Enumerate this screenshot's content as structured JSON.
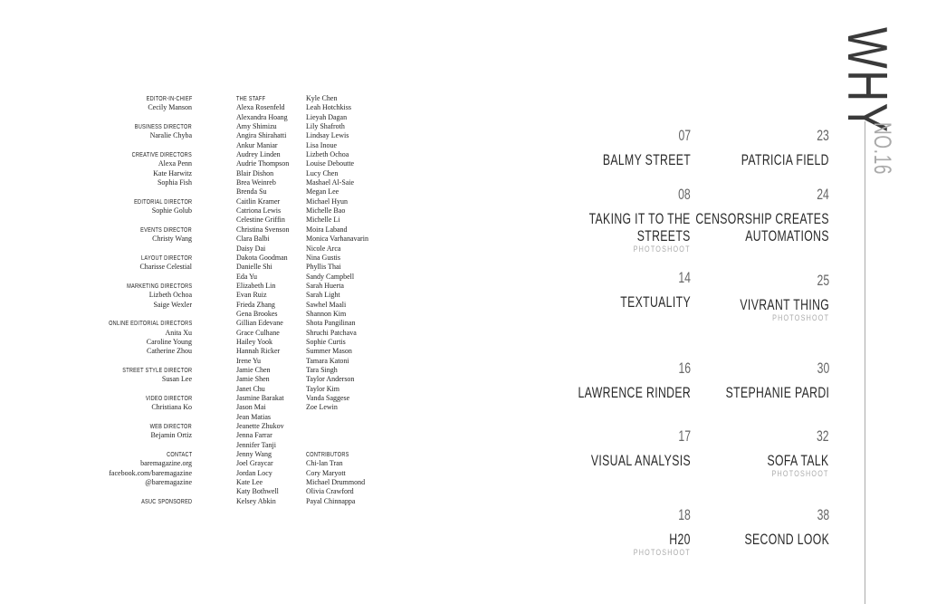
{
  "masthead": [
    {
      "role": "Editor-in-Chief",
      "names": [
        "Cecily Manson"
      ]
    },
    {
      "role": "Business Director",
      "names": [
        "Naralie Chyba"
      ]
    },
    {
      "role": "Creative Directors",
      "names": [
        "Alexa Penn",
        "Kate Harwitz",
        "Sophia Fish"
      ]
    },
    {
      "role": "Editorial Director",
      "names": [
        "Sophie Golub"
      ]
    },
    {
      "role": "Events Director",
      "names": [
        "Christy Wang"
      ]
    },
    {
      "role": "Layout Director",
      "names": [
        "Charisse Celestial"
      ]
    },
    {
      "role": "Marketing Directors",
      "names": [
        "Lizbeth Ochoa",
        "Saige Wexler"
      ]
    },
    {
      "role": "Online Editorial Directors",
      "names": [
        "Anita Xu",
        "Caroline Young",
        "Catherine Zhou"
      ]
    },
    {
      "role": "Street Style Director",
      "names": [
        "Susan Lee"
      ]
    },
    {
      "role": "Video Director",
      "names": [
        "Christiana Ko"
      ]
    },
    {
      "role": "Web Director",
      "names": [
        "Bejamin Ortiz"
      ]
    },
    {
      "role": "Contact",
      "names": [
        "baremagazine.org",
        "facebook.com/baremagazine",
        "@baremagazine"
      ]
    },
    {
      "role": "ASUC Sponsored",
      "names": []
    }
  ],
  "staff": {
    "heading": "The Staff",
    "column1": [
      "Alexa Rosenfeld",
      "Alexandra Hoang",
      "Amy Shimizu",
      "Angira Shirahatti",
      "Ankur Maniar",
      "Audrey Linden",
      "Audrie Thompson",
      "Blair Dishon",
      "Brea Weinreb",
      "Brenda Su",
      "Caitlin Kramer",
      "Catriona Lewis",
      "Celestine Griffin",
      "Christina Svenson",
      "Clara Balbi",
      "Daisy Dai",
      "Dakota Goodman",
      "Danielle Shi",
      "Eda Yu",
      "Elizabeth Lin",
      "Evan Ruiz",
      "Frieda Zhang",
      "Gena Brookes",
      "Gillian Edevane",
      "Grace Culhane",
      "Hailey Yook",
      "Hannah Ricker",
      "Irene Yu",
      "Jamie Chen",
      "Jamie Shen",
      "Janet Chu",
      "Jasmine Barakat",
      "Jason Mai",
      "Jean Matias",
      "Jeanette Zhukov",
      "Jenna Farrar",
      "Jennifer Tanji",
      "Jenny Wang",
      "Joel Graycar",
      "Jordan Locy",
      "Kate Lee",
      "Katy Bothwell",
      "Kelsey Abkin"
    ],
    "column2": [
      "Kyle Chen",
      "Leah Hotchkiss",
      "Lieyah Dagan",
      "Lily Shafroth",
      "Lindsay Lewis",
      "Lisa Inoue",
      "Lizbeth Ochoa",
      "Louise Deboutte",
      "Lucy Chen",
      "Mashael Al-Saie",
      "Megan Lee",
      "Michael Hyun",
      "Michelle Bao",
      "Michelle Li",
      "Moira Laband",
      "Monica Varhanavarin",
      "Nicole Arca",
      "Nina Gustis",
      "Phyllis Thai",
      "Sandy Campbell",
      "Sarah Huerta",
      "Sarah Light",
      "Sawhel Maali",
      "Shannon Kim",
      "Shota Pangilinan",
      "Shruchi Patchava",
      "Sophie Curtis",
      "Summer Mason",
      "Tamara Katoni",
      "Tara Singh",
      "Taylor Anderson",
      "Taylor Kim",
      "Vanda Saggese",
      "Zoe Lewin"
    ]
  },
  "contributors": {
    "heading": "Contributors",
    "names": [
      "Chi-lan Tran",
      "Cory Maryott",
      "Michael Drummond",
      "Olivia Crawford",
      "Payal Chinnappa"
    ]
  },
  "toc": {
    "left": [
      {
        "page": "07",
        "title": [
          "BALMY STREET"
        ],
        "tag": ""
      },
      {
        "page": "08",
        "title": [
          "TAKING IT TO THE",
          "STREETS"
        ],
        "tag": "PHOTOSHOOT"
      },
      {
        "page": "14",
        "title": [
          "TEXTUALITY"
        ],
        "tag": ""
      },
      {
        "page": "16",
        "title": [
          "LAWRENCE RINDER"
        ],
        "tag": ""
      },
      {
        "page": "17",
        "title": [
          "VISUAL ANALYSIS"
        ],
        "tag": ""
      },
      {
        "page": "18",
        "title": [
          "H20"
        ],
        "tag": "PHOTOSHOOT"
      }
    ],
    "right": [
      {
        "page": "23",
        "title": [
          "PATRICIA FIELD"
        ],
        "tag": ""
      },
      {
        "page": "24",
        "title": [
          "CENSORSHIP CREATES",
          "AUTOMATIONS"
        ],
        "tag": ""
      },
      {
        "page": "25",
        "title": [
          "VIVRANT THING"
        ],
        "tag": "PHOTOSHOOT"
      },
      {
        "page": "30",
        "title": [
          "STEPHANIE PARDI"
        ],
        "tag": ""
      },
      {
        "page": "32",
        "title": [
          "SOFA TALK"
        ],
        "tag": "PHOTOSHOOT"
      },
      {
        "page": "38",
        "title": [
          "SECOND LOOK"
        ],
        "tag": ""
      }
    ]
  },
  "brand": {
    "title": "WHY",
    "issue": "NO.16"
  }
}
